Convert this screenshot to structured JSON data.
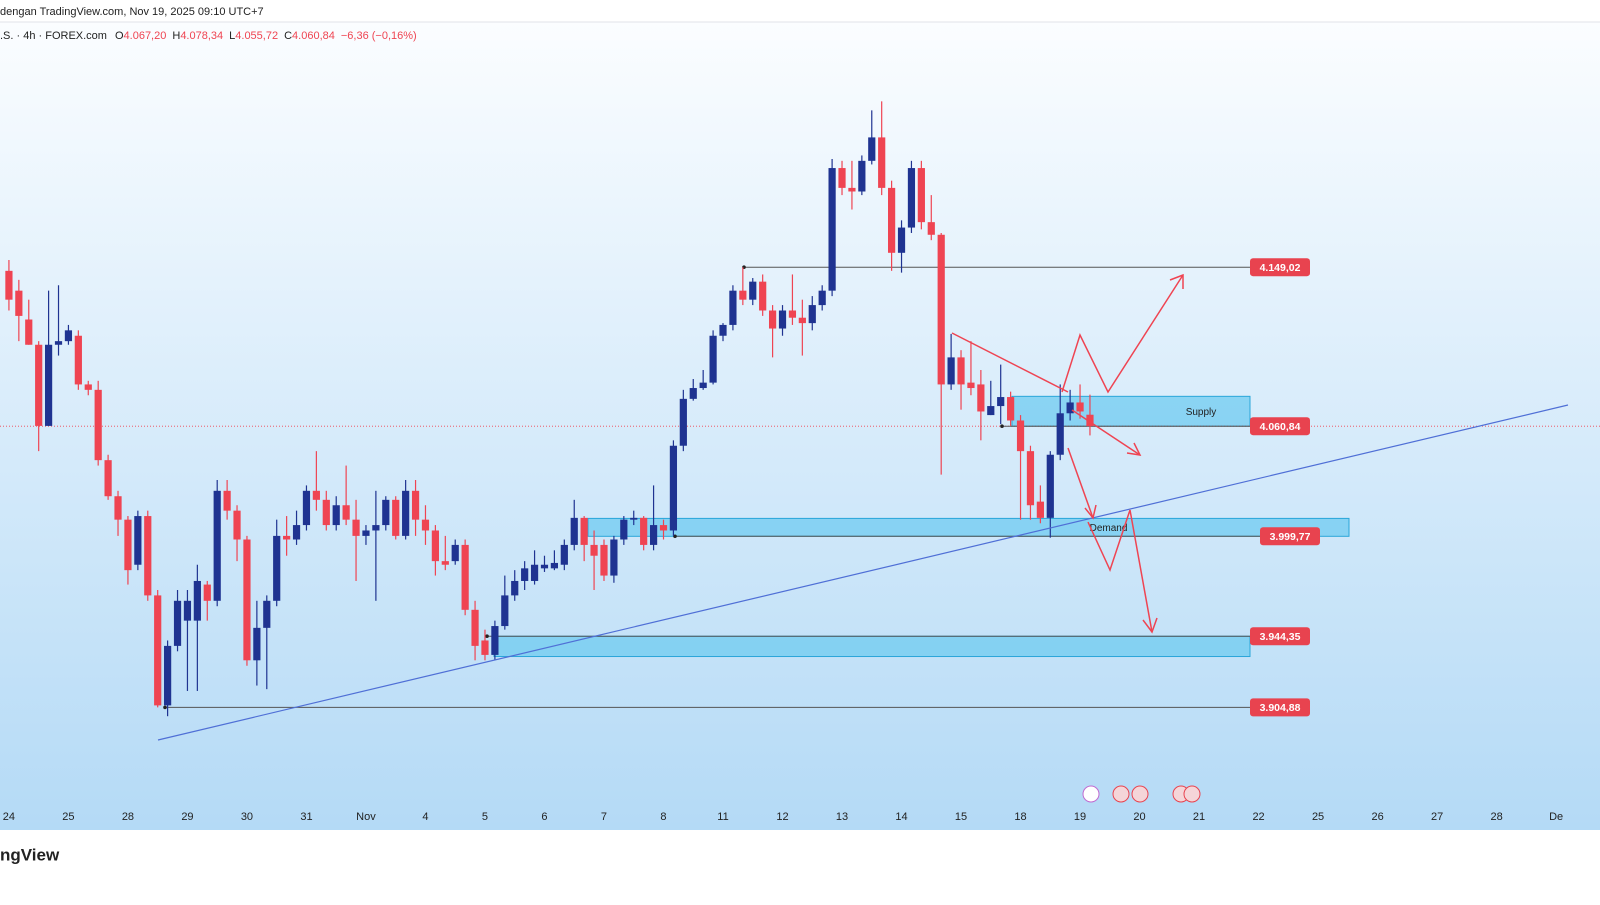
{
  "header": {
    "source": "dengan TradingView.com, Nov 19, 2025 09:10 UTC+7",
    "symbol": ".S. · 4h · FOREX.com",
    "ohlc": [
      {
        "key": "O",
        "value": "4.067,20"
      },
      {
        "key": "H",
        "value": "4.078,34"
      },
      {
        "key": "L",
        "value": "4.055,72"
      },
      {
        "key": "C",
        "value": "4.060,84"
      }
    ],
    "change": "−6,36 (−0,16%)"
  },
  "footer": {
    "brand": "ngView"
  },
  "chart_data": {
    "type": "candlestick",
    "up_color": "#1f3391",
    "down_color": "#ef4452",
    "ylim": [
      3838,
      4285
    ],
    "xlim": [
      -0.9,
      157.2
    ],
    "xticks": [
      {
        "value": 0,
        "label": "24"
      },
      {
        "value": 6,
        "label": "25"
      },
      {
        "value": 12,
        "label": "28"
      },
      {
        "value": 18,
        "label": "29"
      },
      {
        "value": 24,
        "label": "30"
      },
      {
        "value": 30,
        "label": "31"
      },
      {
        "value": 36,
        "label": "Nov"
      },
      {
        "value": 42,
        "label": "4"
      },
      {
        "value": 48,
        "label": "5"
      },
      {
        "value": 54,
        "label": "6"
      },
      {
        "value": 60,
        "label": "7"
      },
      {
        "value": 66,
        "label": "8"
      },
      {
        "value": 72,
        "label": "11"
      },
      {
        "value": 78,
        "label": "12"
      },
      {
        "value": 84,
        "label": "13"
      },
      {
        "value": 90,
        "label": "14"
      },
      {
        "value": 96,
        "label": "15"
      },
      {
        "value": 102,
        "label": "18"
      },
      {
        "value": 108,
        "label": "19"
      },
      {
        "value": 114,
        "label": "20"
      },
      {
        "value": 120,
        "label": "21"
      },
      {
        "value": 126,
        "label": "22"
      },
      {
        "value": 132,
        "label": "25"
      },
      {
        "value": 138,
        "label": "26"
      },
      {
        "value": 144,
        "label": "27"
      },
      {
        "value": 150,
        "label": "28"
      },
      {
        "value": 156,
        "label": "De"
      }
    ],
    "open": [
      4147,
      4136,
      4120,
      4106,
      4061,
      4106,
      4108,
      4111,
      4084,
      4081,
      4042,
      4022,
      4009,
      3984,
      4011,
      3967,
      3906,
      3939,
      3953,
      3953,
      3973,
      3964,
      4025,
      4014,
      3998,
      3931,
      3949,
      3964,
      4000,
      3998,
      4006,
      4025,
      4020,
      4006,
      4017,
      4009,
      4000,
      4003,
      4006,
      4020,
      4000,
      4025,
      4009,
      4003,
      3986,
      3986,
      3995,
      3959,
      3942,
      3934,
      3950,
      3967,
      3975,
      3975,
      3982,
      3982,
      3984,
      3995,
      4010,
      3995,
      3995,
      3978,
      3998,
      4009,
      4010,
      3995,
      4006,
      4003,
      4050,
      4076,
      4082,
      4085,
      4111,
      4117,
      4136,
      4131,
      4141,
      4125,
      4115,
      4125,
      4121,
      4118,
      4128,
      4136,
      4204,
      4193,
      4191,
      4208,
      4221,
      4193,
      4157,
      4171,
      4204,
      4174,
      4167,
      4084,
      4099,
      4085,
      4084,
      4067,
      4072,
      4077,
      4064,
      4047,
      4019,
      4010,
      4045,
      4068,
      4074,
      4067.2
    ],
    "high": [
      4153,
      4142,
      4131,
      4108,
      4136,
      4139,
      4117,
      4114,
      4086,
      4086,
      4045,
      4025,
      4011,
      4014,
      4014,
      3970,
      3942,
      3970,
      3970,
      3984,
      3975,
      4031,
      4031,
      4017,
      4000,
      3964,
      3967,
      4009,
      4011,
      4014,
      4028,
      4047,
      4025,
      4022,
      4039,
      4020,
      4006,
      4025,
      4022,
      4022,
      4031,
      4031,
      4017,
      4006,
      4000,
      3998,
      3998,
      3964,
      3948,
      3953,
      3978,
      3981,
      3986,
      3992,
      3989,
      3992,
      3998,
      4020,
      4011,
      4003,
      3998,
      4000,
      4011,
      4014,
      4011,
      4028,
      4009,
      4053,
      4081,
      4087,
      4092,
      4114,
      4118,
      4139,
      4149,
      4143,
      4145,
      4128,
      4128,
      4145,
      4131,
      4133,
      4139,
      4209,
      4208,
      4208,
      4211,
      4236,
      4241,
      4197,
      4175,
      4208,
      4208,
      4189,
      4168,
      4112,
      4103,
      4108,
      4092,
      4086,
      4095,
      4080,
      4067,
      4050,
      4028,
      4047,
      4084,
      4081,
      4084,
      4078.34
    ],
    "low": [
      4125,
      4108,
      4106,
      4047,
      4061,
      4100,
      4106,
      4081,
      4078,
      4039,
      4020,
      4000,
      3973,
      3981,
      3964,
      3904.9,
      3900,
      3936,
      3914,
      3914,
      3953,
      3961,
      4009,
      3986,
      3928,
      3917,
      3915,
      3961,
      3989,
      3995,
      4003,
      4014,
      4003,
      4003,
      4006,
      3975,
      3995,
      3964,
      4003,
      3998,
      3998,
      4000,
      3995,
      3978,
      3981,
      3984,
      3956,
      3931,
      3931,
      3931,
      3948,
      3964,
      3970,
      3973,
      3980,
      3981,
      3981,
      3992,
      3986,
      3970,
      3975,
      3974,
      3995,
      4006,
      3992,
      3992,
      3998,
      4000,
      4047,
      4075,
      4081,
      4084,
      4108,
      4114,
      4128,
      4128,
      4122,
      4099,
      4111,
      4117,
      4100,
      4114,
      4125,
      4133,
      4189,
      4181,
      4189,
      4206,
      4189,
      4147,
      4146,
      4168,
      4170,
      4164,
      4034,
      4081,
      4070,
      4078,
      4053,
      4067,
      4062,
      4061,
      4009,
      4009,
      4007,
      3999,
      4042,
      4064,
      4065,
      4055.72
    ],
    "close": [
      4131,
      4122,
      4106,
      4061,
      4106,
      4108,
      4114,
      4084,
      4081,
      4042,
      4022,
      4009,
      3981,
      4011,
      3967,
      3906,
      3939,
      3964,
      3964,
      3975,
      3964,
      4025,
      4014,
      3998,
      3931,
      3949,
      3964,
      4000,
      3998,
      4006,
      4025,
      4020,
      4006,
      4017,
      4009,
      4000,
      4003,
      4006,
      4020,
      4000,
      4025,
      4009,
      4003,
      3986,
      3984,
      3995,
      3959,
      3939,
      3934,
      3950,
      3967,
      3975,
      3982,
      3984,
      3984,
      3985,
      3995,
      4010,
      3995,
      3989,
      3978,
      3998,
      4009,
      4010,
      3995,
      4006,
      4003,
      4050,
      4076,
      4082,
      4085,
      4111,
      4117,
      4136,
      4131,
      4141,
      4125,
      4115,
      4125,
      4121,
      4118,
      4128,
      4136,
      4204,
      4193,
      4191,
      4208,
      4221,
      4193,
      4157,
      4171,
      4204,
      4174,
      4167,
      4084,
      4099,
      4084,
      4082,
      4069,
      4072,
      4077,
      4064,
      4047,
      4017,
      4010,
      4045,
      4068,
      4074,
      4069,
      4060.84
    ],
    "levels": [
      {
        "value": 4149.02,
        "label": "4.149,02"
      },
      {
        "value": 4060.84,
        "label": "4.060,84"
      },
      {
        "value": 3999.77,
        "label": "3.999,77"
      },
      {
        "value": 3944.35,
        "label": "3.944,35"
      },
      {
        "value": 3904.88,
        "label": "3.904,88"
      }
    ],
    "zones": [
      {
        "label": "Supply",
        "top": 4077.4,
        "bottom": 4060.84
      },
      {
        "label": "Demand",
        "top": 4009.7,
        "bottom": 3999.77
      },
      {
        "top": 3944.35,
        "bottom": 3933.1
      }
    ]
  }
}
